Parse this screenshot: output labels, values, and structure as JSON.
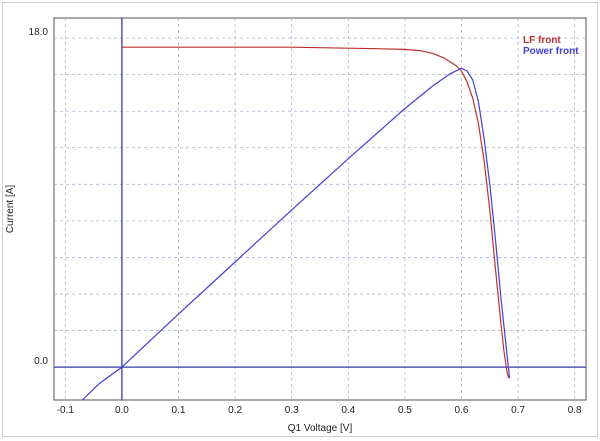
{
  "chart_data": {
    "type": "line",
    "xlabel": "Q1 Voltage [V]",
    "ylabel": "Current [A]",
    "xlim": [
      -0.12,
      0.82
    ],
    "ylim": [
      -1.8,
      19.1
    ],
    "x_ticks": [
      -0.1,
      0.0,
      0.1,
      0.2,
      0.3,
      0.4,
      0.5,
      0.6,
      0.7,
      0.8
    ],
    "x_tick_labels": [
      "-0.1",
      "0.0",
      "0.1",
      "0.2",
      "0.3",
      "0.4",
      "0.5",
      "0.6",
      "0.7",
      "0.8"
    ],
    "y_tick_labels": [
      {
        "value": 18.0,
        "label": "18.0"
      },
      {
        "value": 0.0,
        "label": "0.0"
      }
    ],
    "grid": true,
    "legend_position": "top-right",
    "series": [
      {
        "name": "LF front",
        "color": "#c03030",
        "x": [
          0.0,
          0.1,
          0.2,
          0.3,
          0.4,
          0.45,
          0.5,
          0.53,
          0.55,
          0.57,
          0.59,
          0.6,
          0.61,
          0.62,
          0.63,
          0.64,
          0.65,
          0.66,
          0.67,
          0.675,
          0.68,
          0.683
        ],
        "y": [
          17.5,
          17.5,
          17.5,
          17.5,
          17.45,
          17.42,
          17.38,
          17.3,
          17.15,
          16.9,
          16.5,
          16.2,
          15.6,
          14.7,
          13.3,
          11.3,
          8.6,
          5.4,
          2.3,
          0.9,
          -0.2,
          -0.6
        ]
      },
      {
        "name": "Power front",
        "color": "#4040d8",
        "x": [
          -0.07,
          -0.04,
          0.0,
          0.05,
          0.1,
          0.2,
          0.3,
          0.4,
          0.5,
          0.55,
          0.58,
          0.6,
          0.61,
          0.62,
          0.63,
          0.64,
          0.65,
          0.66,
          0.67,
          0.68,
          0.685
        ],
        "y": [
          -1.8,
          -0.9,
          0.0,
          1.45,
          2.9,
          5.75,
          8.6,
          11.4,
          14.15,
          15.4,
          16.05,
          16.35,
          16.2,
          15.7,
          14.5,
          12.5,
          10.0,
          7.0,
          3.7,
          0.8,
          -0.6
        ]
      }
    ]
  }
}
